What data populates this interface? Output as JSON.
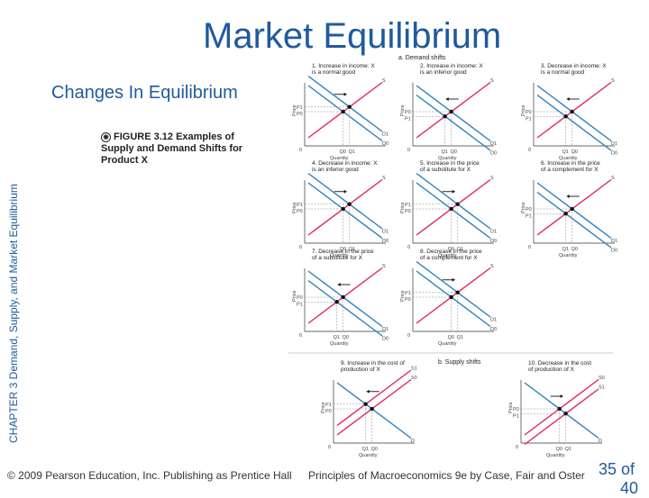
{
  "slide": {
    "title": "Market Equilibrium",
    "subtitle": "Changes In Equilibrium",
    "side_label": "CHAPTER 3 Demand, Supply, and Market Equilibrium",
    "caption_icon": "figure-icon",
    "caption": "FIGURE 3.12 Examples of Supply and Demand Shifts for Product X",
    "footer_left": "© 2009 Pearson Education, Inc. Publishing as Prentice Hall",
    "footer_right": "Principles of Macroeconomics 9e by Case, Fair and Oster",
    "page_number": "35 of",
    "page_number_cont": "40"
  },
  "figure": {
    "section_a": "a. Demand shifts",
    "section_b": "b. Supply shifts",
    "axis_price": "Price",
    "axis_quantity": "Quantity",
    "origin": "0",
    "colors": {
      "supply": "#e0245e",
      "demand": "#2b7fb8",
      "point": "#111111",
      "grid": "#888888"
    },
    "panels": [
      {
        "id": "p1",
        "title": "1. Increase in income: X is a normal good",
        "shift": "demand",
        "dir": "right",
        "labels": [
          "S",
          "D1",
          "D0",
          "P1",
          "P0",
          "Q0",
          "Q1"
        ]
      },
      {
        "id": "p2",
        "title": "2. Increase in income: X is an inferior good",
        "shift": "demand",
        "dir": "left",
        "labels": [
          "S",
          "D0",
          "D1",
          "P0",
          "P1",
          "Q1",
          "Q0"
        ]
      },
      {
        "id": "p3",
        "title": "3. Decrease in income: X is a normal good",
        "shift": "demand",
        "dir": "left",
        "labels": [
          "S",
          "D0",
          "D1",
          "P0",
          "P1",
          "Q1",
          "Q0"
        ]
      },
      {
        "id": "p4",
        "title": "4. Decrease in income: X is an inferior good",
        "shift": "demand",
        "dir": "right",
        "labels": [
          "S",
          "D1",
          "D0",
          "P1",
          "P0",
          "Q0",
          "Q1"
        ]
      },
      {
        "id": "p5",
        "title": "5. Increase in the price of a substitute for X",
        "shift": "demand",
        "dir": "right",
        "labels": [
          "S",
          "D1",
          "D0",
          "P1",
          "P0",
          "Q0",
          "Q1"
        ]
      },
      {
        "id": "p6",
        "title": "6. Increase in the price of a complement for X",
        "shift": "demand",
        "dir": "left",
        "labels": [
          "S",
          "D0",
          "D1",
          "P0",
          "P1",
          "Q1",
          "Q0"
        ]
      },
      {
        "id": "p7",
        "title": "7. Decrease in the price of a substitute for X",
        "shift": "demand",
        "dir": "left",
        "labels": [
          "S",
          "D0",
          "D1",
          "P0",
          "P1",
          "Q1",
          "Q0"
        ]
      },
      {
        "id": "p8",
        "title": "8. Decrease in the price of a complement for X",
        "shift": "demand",
        "dir": "right",
        "labels": [
          "S",
          "D1",
          "D0",
          "P1",
          "P0",
          "Q0",
          "Q1"
        ]
      },
      {
        "id": "p9",
        "title": "9. Increase in the cost of production of X",
        "shift": "supply",
        "dir": "left",
        "labels": [
          "S1",
          "S0",
          "D",
          "P1",
          "P0",
          "Q1",
          "Q0"
        ]
      },
      {
        "id": "p10",
        "title": "10. Decrease in the cost of production of X",
        "shift": "supply",
        "dir": "right",
        "labels": [
          "S0",
          "S1",
          "D",
          "P0",
          "P1",
          "Q0",
          "Q1"
        ]
      }
    ]
  }
}
